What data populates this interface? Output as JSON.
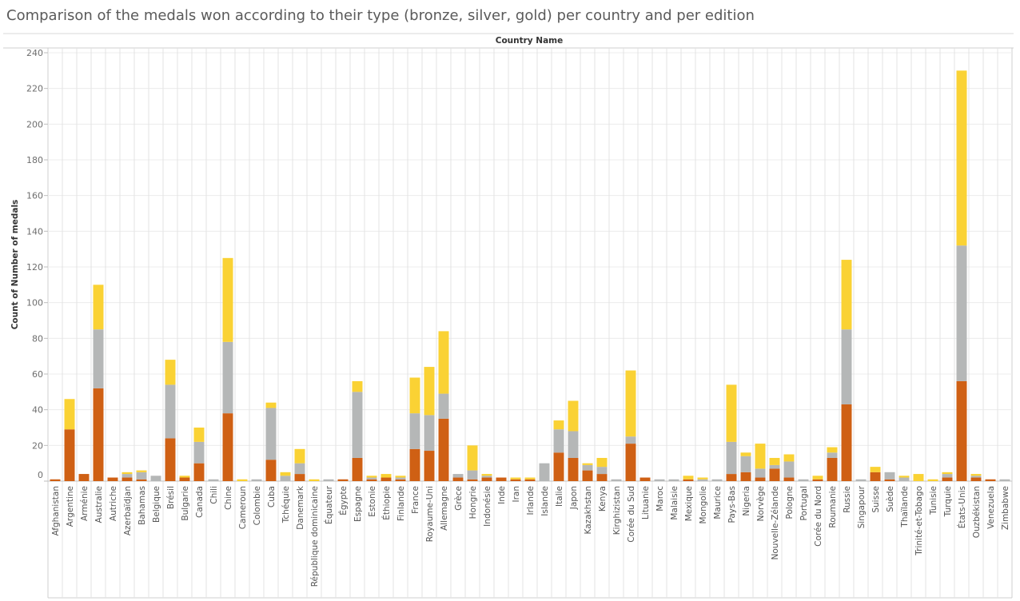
{
  "chart_data": {
    "type": "bar",
    "stacked": true,
    "title": "Comparison of the medals won according to their type (bronze, silver, gold) per country and per edition",
    "column_header": "Country Name",
    "ylabel": "Count of Number of medals",
    "ylim": [
      0,
      240
    ],
    "yticks": [
      0,
      20,
      40,
      60,
      80,
      100,
      120,
      140,
      160,
      180,
      200,
      220,
      240
    ],
    "grid": true,
    "legend": "none",
    "colors": {
      "bronze": "#cf6014",
      "silver": "#b5b7b7",
      "gold": "#fad234"
    },
    "categories": [
      "Afghanistan",
      "Argentine",
      "Arménie",
      "Australie",
      "Autriche",
      "Azerbaïdjan",
      "Bahamas",
      "Belgique",
      "Brésil",
      "Bulgarie",
      "Canada",
      "Chili",
      "Chine",
      "Cameroun",
      "Colombie",
      "Cuba",
      "Tchéquie",
      "Danemark",
      "République dominicaine",
      "Équateur",
      "Égypte",
      "Espagne",
      "Estonie",
      "Éthiopie",
      "Finlande",
      "France",
      "Royaume-Uni",
      "Allemagne",
      "Grèce",
      "Hongrie",
      "Indonésie",
      "Inde",
      "Iran",
      "Irlande",
      "Islande",
      "Italie",
      "Japon",
      "Kazakhstan",
      "Kenya",
      "Kirghizistan",
      "Corée du Sud",
      "Lituanie",
      "Maroc",
      "Malaisie",
      "Mexique",
      "Mongolie",
      "Maurice",
      "Pays-Bas",
      "Nigeria",
      "Norvège",
      "Nouvelle-Zélande",
      "Pologne",
      "Portugal",
      "Corée du Nord",
      "Roumanie",
      "Russie",
      "Singapour",
      "Suisse",
      "Suède",
      "Thaïlande",
      "Trinité-et-Tobago",
      "Tunisie",
      "Turquie",
      "États-Unis",
      "Ouzbékistan",
      "Venezuela",
      "Zimbabwe"
    ],
    "series": [
      {
        "key": "bronze",
        "values": [
          1,
          29,
          4,
          52,
          2,
          2,
          1,
          0,
          24,
          2,
          10,
          0,
          38,
          0,
          0,
          12,
          0,
          4,
          0,
          0,
          1,
          13,
          1,
          2,
          1,
          18,
          17,
          35,
          2,
          1,
          2,
          2,
          1,
          1,
          0,
          16,
          13,
          6,
          4,
          0,
          21,
          2,
          0,
          0,
          1,
          0,
          0,
          4,
          5,
          2,
          7,
          2,
          0,
          1,
          13,
          43,
          0,
          5,
          1,
          0,
          0,
          0,
          2,
          56,
          2,
          1,
          0
        ]
      },
      {
        "key": "silver",
        "values": [
          0,
          0,
          0,
          33,
          0,
          2,
          4,
          3,
          30,
          0,
          12,
          1,
          40,
          0,
          1,
          29,
          3,
          6,
          0,
          1,
          0,
          37,
          1,
          0,
          1,
          20,
          20,
          14,
          2,
          5,
          1,
          0,
          0,
          0,
          10,
          13,
          15,
          3,
          4,
          1,
          4,
          0,
          1,
          1,
          0,
          1,
          1,
          18,
          9,
          5,
          2,
          9,
          1,
          0,
          3,
          42,
          1,
          0,
          4,
          2,
          0,
          0,
          2,
          76,
          1,
          0,
          1
        ]
      },
      {
        "key": "gold",
        "values": [
          0,
          17,
          0,
          25,
          0,
          1,
          1,
          0,
          14,
          1,
          8,
          0,
          47,
          1,
          0,
          3,
          2,
          8,
          1,
          0,
          0,
          6,
          1,
          2,
          1,
          20,
          27,
          35,
          0,
          14,
          1,
          0,
          1,
          1,
          0,
          5,
          17,
          1,
          5,
          0,
          37,
          0,
          0,
          0,
          2,
          1,
          0,
          32,
          2,
          14,
          4,
          4,
          0,
          2,
          3,
          39,
          0,
          3,
          0,
          1,
          4,
          1,
          1,
          98,
          1,
          0,
          0
        ]
      }
    ]
  }
}
